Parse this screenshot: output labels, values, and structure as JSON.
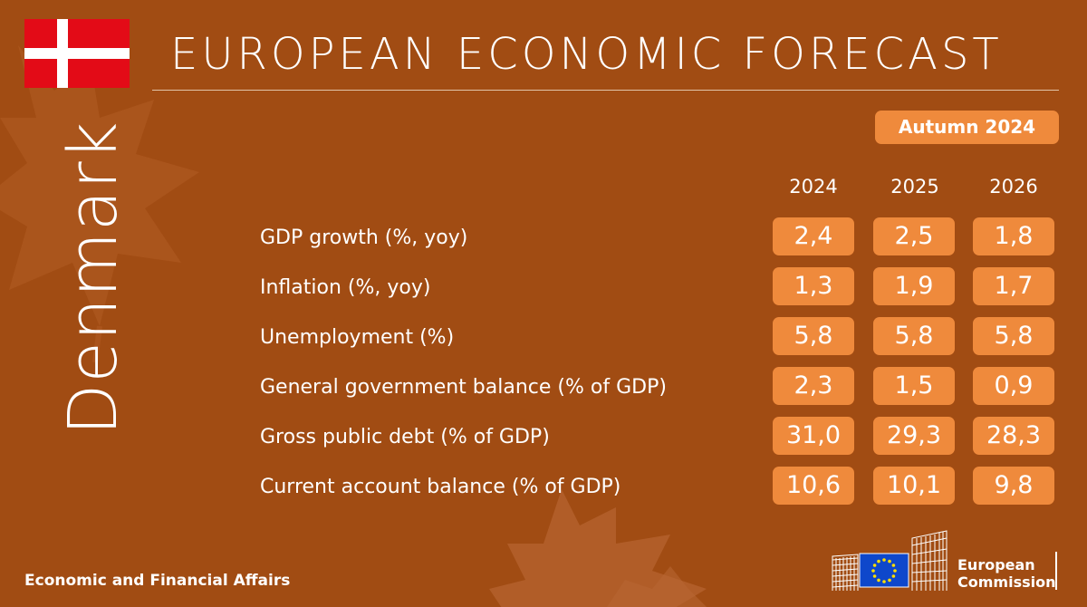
{
  "header": {
    "title": "EUROPEAN ECONOMIC FORECAST",
    "season": "Autumn 2024"
  },
  "country": {
    "name": "Denmark",
    "flag": {
      "red": "#e30b17",
      "cross": "#ffffff"
    }
  },
  "years": [
    "2024",
    "2025",
    "2026"
  ],
  "rows": [
    {
      "label": "GDP growth (%, yoy)",
      "values": [
        "2,4",
        "2,5",
        "1,8"
      ]
    },
    {
      "label": "Inflation (%, yoy)",
      "values": [
        "1,3",
        "1,9",
        "1,7"
      ]
    },
    {
      "label": "Unemployment (%)",
      "values": [
        "5,8",
        "5,8",
        "5,8"
      ]
    },
    {
      "label": "General government balance (% of GDP)",
      "values": [
        "2,3",
        "1,5",
        "0,9"
      ]
    },
    {
      "label": "Gross public debt (% of GDP)",
      "values": [
        "31,0",
        "29,3",
        "28,3"
      ]
    },
    {
      "label": "Current account balance (% of GDP)",
      "values": [
        "10,6",
        "10,1",
        "9,8"
      ]
    }
  ],
  "footer": {
    "department": "Economic and Financial Affairs",
    "logo_line1": "European",
    "logo_line2": "Commission"
  },
  "colors": {
    "background": "#a14c13",
    "accent": "#ef8a3c",
    "text": "#ffffff",
    "eu_blue": "#0e47cb",
    "eu_star": "#ffde00"
  }
}
